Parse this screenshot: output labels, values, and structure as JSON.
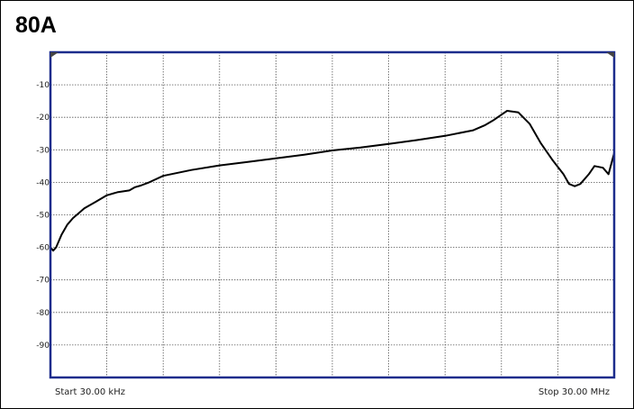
{
  "chart_data": {
    "type": "line",
    "title": "80A",
    "start_label": "Start 30.00 kHz",
    "stop_label": "Stop 30.00 MHz",
    "ylim": [
      -100,
      0
    ],
    "yticks": [
      -10,
      -20,
      -30,
      -40,
      -50,
      -60,
      -70,
      -80,
      -90
    ],
    "x_divisions": 10,
    "grid": true,
    "colors": {
      "trace": "#000000",
      "plot_border": "#1c2c8c",
      "grid": "#555555"
    },
    "series": [
      {
        "x": [
          0.0,
          0.05,
          0.1,
          0.15,
          0.2,
          0.3,
          0.4,
          0.5,
          0.6,
          0.8,
          1.0,
          1.2,
          1.4,
          1.5,
          1.6,
          1.75,
          2.0,
          2.5,
          3.0,
          3.5,
          4.0,
          4.5,
          5.0,
          5.5,
          6.0,
          6.5,
          7.0,
          7.5,
          7.7,
          7.85,
          8.0,
          8.1,
          8.3,
          8.5,
          8.7,
          8.9,
          9.1,
          9.2,
          9.3,
          9.4,
          9.55,
          9.65,
          9.8,
          9.9,
          10.0
        ],
        "y": [
          -60,
          -61,
          -60,
          -58,
          -56,
          -53,
          -51,
          -49.5,
          -48,
          -46,
          -44,
          -43,
          -42.5,
          -41.5,
          -41,
          -40,
          -38,
          -36.2,
          -34.8,
          -33.7,
          -32.6,
          -31.5,
          -30.2,
          -29.3,
          -28.2,
          -27,
          -25.7,
          -24,
          -22.5,
          -21,
          -19.2,
          -18,
          -18.5,
          -22,
          -28,
          -33,
          -37.5,
          -40.5,
          -41.2,
          -40.5,
          -37.5,
          -35,
          -35.5,
          -37.5,
          -31
        ]
      }
    ]
  }
}
